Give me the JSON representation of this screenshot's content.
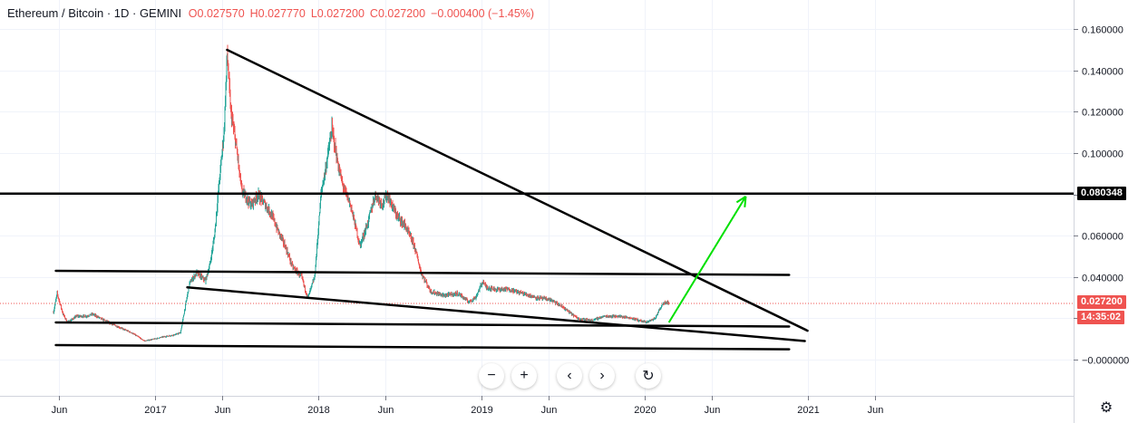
{
  "legend": {
    "symbol": "Ethereum / Bitcoin · 1D · GEMINI",
    "open": "O0.027570",
    "high": "H0.027770",
    "low": "L0.027200",
    "close": "C0.027200",
    "change": "−0.000400 (−1.45%)"
  },
  "price_tags": {
    "resistance": "0.080348",
    "last_price": "0.027200",
    "countdown": "14:35:02"
  },
  "colors": {
    "up": "#26a69a",
    "down": "#ef5350",
    "drawing": "#000000",
    "arrow": "#00e000",
    "grid": "#f0f3fa",
    "last_price_line": "#ef5350"
  },
  "nav_icons": [
    "minus-icon",
    "plus-icon",
    "chevron-left-icon",
    "chevron-right-icon",
    "reset-icon"
  ],
  "chart_data": {
    "type": "candlestick",
    "title": "Ethereum / Bitcoin",
    "interval": "1D",
    "exchange": "GEMINI",
    "x_ticks": [
      "Jun",
      "2017",
      "Jun",
      "2018",
      "Jun",
      "2019",
      "Jun",
      "2020",
      "Jun",
      "2021",
      "Jun"
    ],
    "x_tick_dates": [
      "2016-06-01",
      "2017-01-01",
      "2017-06-01",
      "2018-01-01",
      "2018-06-01",
      "2019-01-01",
      "2019-06-01",
      "2020-01-01",
      "2020-06-01",
      "2021-01-01",
      "2021-06-01"
    ],
    "y_ticks": [
      "0.160000",
      "0.140000",
      "0.120000",
      "0.100000",
      "0.080000",
      "0.060000",
      "0.040000",
      "0.020000",
      "−0.000000"
    ],
    "y_tick_values": [
      0.16,
      0.14,
      0.12,
      0.1,
      0.08,
      0.06,
      0.04,
      0.02,
      0.0
    ],
    "ylim": [
      -0.011,
      0.17
    ],
    "grid": true,
    "price_path": [
      [
        "2016-05-20",
        0.023
      ],
      [
        "2016-05-28",
        0.032
      ],
      [
        "2016-06-10",
        0.022
      ],
      [
        "2016-06-20",
        0.018
      ],
      [
        "2016-07-10",
        0.021
      ],
      [
        "2016-08-01",
        0.021
      ],
      [
        "2016-08-15",
        0.022
      ],
      [
        "2016-09-10",
        0.019
      ],
      [
        "2016-10-10",
        0.016
      ],
      [
        "2016-11-10",
        0.013
      ],
      [
        "2016-12-10",
        0.009
      ],
      [
        "2017-01-01",
        0.01
      ],
      [
        "2017-01-20",
        0.011
      ],
      [
        "2017-02-15",
        0.012
      ],
      [
        "2017-02-28",
        0.013
      ],
      [
        "2017-03-10",
        0.025
      ],
      [
        "2017-03-20",
        0.037
      ],
      [
        "2017-04-05",
        0.042
      ],
      [
        "2017-04-25",
        0.038
      ],
      [
        "2017-05-05",
        0.046
      ],
      [
        "2017-05-15",
        0.06
      ],
      [
        "2017-05-25",
        0.085
      ],
      [
        "2017-06-05",
        0.11
      ],
      [
        "2017-06-12",
        0.148
      ],
      [
        "2017-06-20",
        0.12
      ],
      [
        "2017-07-01",
        0.105
      ],
      [
        "2017-07-15",
        0.082
      ],
      [
        "2017-08-05",
        0.075
      ],
      [
        "2017-08-20",
        0.08
      ],
      [
        "2017-09-05",
        0.075
      ],
      [
        "2017-09-20",
        0.07
      ],
      [
        "2017-10-05",
        0.062
      ],
      [
        "2017-10-20",
        0.055
      ],
      [
        "2017-11-05",
        0.045
      ],
      [
        "2017-11-25",
        0.04
      ],
      [
        "2017-12-10",
        0.03
      ],
      [
        "2017-12-25",
        0.04
      ],
      [
        "2018-01-08",
        0.08
      ],
      [
        "2018-01-20",
        0.095
      ],
      [
        "2018-02-01",
        0.112
      ],
      [
        "2018-02-10",
        0.1
      ],
      [
        "2018-02-25",
        0.085
      ],
      [
        "2018-03-15",
        0.075
      ],
      [
        "2018-04-05",
        0.055
      ],
      [
        "2018-04-25",
        0.068
      ],
      [
        "2018-05-10",
        0.08
      ],
      [
        "2018-05-25",
        0.075
      ],
      [
        "2018-06-05",
        0.08
      ],
      [
        "2018-06-25",
        0.07
      ],
      [
        "2018-07-15",
        0.065
      ],
      [
        "2018-08-05",
        0.055
      ],
      [
        "2018-08-20",
        0.042
      ],
      [
        "2018-09-10",
        0.033
      ],
      [
        "2018-10-10",
        0.031
      ],
      [
        "2018-11-10",
        0.032
      ],
      [
        "2018-12-05",
        0.028
      ],
      [
        "2018-12-20",
        0.03
      ],
      [
        "2019-01-05",
        0.038
      ],
      [
        "2019-01-12",
        0.035
      ],
      [
        "2019-02-05",
        0.034
      ],
      [
        "2019-03-05",
        0.034
      ],
      [
        "2019-04-05",
        0.032
      ],
      [
        "2019-05-05",
        0.03
      ],
      [
        "2019-06-05",
        0.029
      ],
      [
        "2019-07-05",
        0.025
      ],
      [
        "2019-08-05",
        0.02
      ],
      [
        "2019-09-05",
        0.019
      ],
      [
        "2019-10-05",
        0.021
      ],
      [
        "2019-11-05",
        0.021
      ],
      [
        "2019-12-05",
        0.02
      ],
      [
        "2020-01-05",
        0.018
      ],
      [
        "2020-01-25",
        0.02
      ],
      [
        "2020-02-10",
        0.027
      ],
      [
        "2020-02-20",
        0.028
      ],
      [
        "2020-02-25",
        0.0272
      ]
    ],
    "last_price": 0.0272,
    "horizontal_line": 0.080348,
    "trendlines": [
      {
        "name": "descending-resistance",
        "from": [
          "2017-06-12",
          0.15
        ],
        "to": [
          "2020-12-31",
          0.014
        ]
      },
      {
        "name": "upper-channel",
        "from": [
          "2016-05-25",
          0.043
        ],
        "to": [
          "2020-11-20",
          0.041
        ]
      },
      {
        "name": "falling-support",
        "from": [
          "2017-03-15",
          0.035
        ],
        "to": [
          "2020-12-25",
          0.009
        ]
      },
      {
        "name": "lower-support-1",
        "from": [
          "2016-05-25",
          0.018
        ],
        "to": [
          "2020-11-20",
          0.016
        ]
      },
      {
        "name": "lower-support-2",
        "from": [
          "2016-05-25",
          0.007
        ],
        "to": [
          "2020-11-20",
          0.005
        ]
      }
    ],
    "projection_arrow": {
      "from": [
        "2020-02-25",
        0.018
      ],
      "to": [
        "2020-08-15",
        0.079
      ]
    }
  }
}
